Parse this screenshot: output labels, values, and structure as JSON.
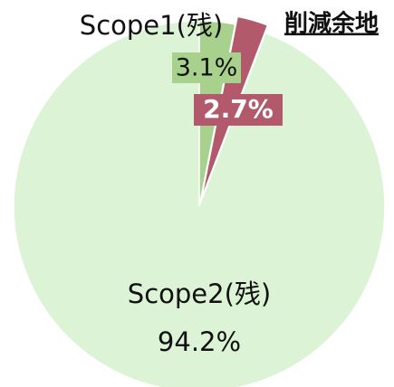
{
  "chart_data": {
    "type": "pie",
    "categories": [
      "Scope1(残)",
      "削減余地",
      "Scope2(残)"
    ],
    "values": [
      3.1,
      2.7,
      94.2
    ],
    "value_labels": [
      "3.1%",
      "2.7%",
      "94.2%"
    ],
    "colors": [
      "#a9d18e",
      "#b25a6b",
      "#dcf3d5"
    ],
    "exploded": [
      false,
      true,
      false
    ]
  }
}
